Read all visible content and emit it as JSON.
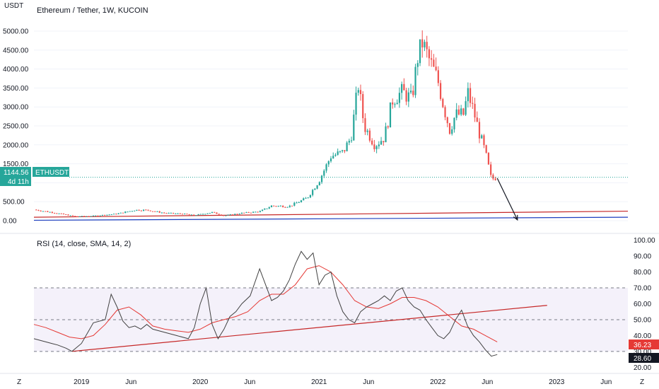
{
  "header": {
    "title": "Ethereum / Tether, 1W, KUCOIN",
    "currency": "USDT"
  },
  "price_badge": {
    "value": "1144.56",
    "countdown": "4d 11h",
    "symbol": "ETHUSDT",
    "color": "#26a69a"
  },
  "rsi": {
    "label": "RSI (14, close, SMA, 14, 2)",
    "value_badge": "36.23",
    "level_badge": "28.60"
  },
  "footer": {
    "z_left": "Z",
    "z_right": "Z"
  },
  "colors": {
    "up": "#26a69a",
    "down": "#ef5350",
    "rsi_line": "#424242",
    "rsi_ma": "#e53935",
    "band_fill": "#ede7f6",
    "trend_red": "#c62828",
    "trend_blue": "#1e3fbf",
    "rsi_value_badge": "#e53935",
    "rsi_level_badge": "#131722",
    "price_badge_dark": "#0d4d45"
  },
  "chart_data": [
    {
      "type": "candlestick",
      "title": "Ethereum / Tether, 1W, KUCOIN",
      "ylim": [
        -150,
        5150
      ],
      "xlim": [
        2018.6,
        2023.6
      ],
      "y_ticks": [
        "0.00",
        "500.00",
        "1000.00",
        "1500.00",
        "2000.00",
        "2500.00",
        "3000.00",
        "3500.00",
        "4000.00",
        "4500.00",
        "5000.00"
      ],
      "y_tick_values": [
        0,
        500,
        1000,
        1500,
        2000,
        2500,
        3000,
        3500,
        4000,
        4500,
        5000
      ],
      "last_price": 1144.56,
      "anchors": [
        [
          2018.6,
          290
        ],
        [
          2018.75,
          220
        ],
        [
          2018.95,
          110
        ],
        [
          2019.1,
          125
        ],
        [
          2019.3,
          180
        ],
        [
          2019.45,
          280
        ],
        [
          2019.55,
          280
        ],
        [
          2019.7,
          200
        ],
        [
          2019.85,
          180
        ],
        [
          2019.95,
          140
        ],
        [
          2020.1,
          220
        ],
        [
          2020.2,
          130
        ],
        [
          2020.35,
          200
        ],
        [
          2020.5,
          240
        ],
        [
          2020.6,
          390
        ],
        [
          2020.75,
          380
        ],
        [
          2020.9,
          600
        ],
        [
          2021.0,
          1050
        ],
        [
          2021.1,
          1700
        ],
        [
          2021.2,
          1800
        ],
        [
          2021.27,
          2200
        ],
        [
          2021.33,
          3600
        ],
        [
          2021.38,
          2500
        ],
        [
          2021.47,
          2000
        ],
        [
          2021.55,
          2200
        ],
        [
          2021.62,
          3200
        ],
        [
          2021.7,
          3400
        ],
        [
          2021.78,
          3200
        ],
        [
          2021.83,
          4300
        ],
        [
          2021.87,
          4700
        ],
        [
          2021.92,
          4300
        ],
        [
          2022.0,
          3700
        ],
        [
          2022.05,
          3000
        ],
        [
          2022.1,
          2400
        ],
        [
          2022.15,
          2800
        ],
        [
          2022.22,
          2800
        ],
        [
          2022.25,
          3400
        ],
        [
          2022.3,
          2900
        ],
        [
          2022.35,
          2300
        ],
        [
          2022.4,
          1800
        ],
        [
          2022.45,
          1100
        ],
        [
          2022.5,
          1144.56
        ]
      ],
      "trendlines": [
        {
          "from": [
            2018.6,
            90
          ],
          "to": [
            2023.6,
            250
          ],
          "color": "red"
        },
        {
          "from": [
            2018.6,
            10
          ],
          "to": [
            2023.6,
            90
          ],
          "color": "blue"
        },
        {
          "from": [
            2022.5,
            1120
          ],
          "to": [
            2022.67,
            20
          ],
          "color": "black",
          "arrow": true
        }
      ]
    },
    {
      "type": "line",
      "title": "RSI (14, close, SMA, 14, 2)",
      "ylim": [
        17,
        103
      ],
      "y_ticks": [
        "20.00",
        "30.00",
        "40.00",
        "50.00",
        "60.00",
        "70.00",
        "80.00",
        "90.00",
        "100.00"
      ],
      "y_tick_values": [
        20,
        30,
        40,
        50,
        60,
        70,
        80,
        90,
        100
      ],
      "bands": [
        30,
        50,
        70
      ],
      "x_ticks": [
        "2019",
        "Jun",
        "2020",
        "Jun",
        "2021",
        "Jun",
        "2022",
        "Jun",
        "2023",
        "Jun"
      ],
      "x_tick_values": [
        2019.0,
        2019.417,
        2020.0,
        2020.417,
        2021.0,
        2021.417,
        2022.0,
        2022.417,
        2023.0,
        2023.417
      ],
      "series": [
        {
          "role": "rsi",
          "x": [
            2018.6,
            2018.65,
            2018.7,
            2018.75,
            2018.8,
            2018.87,
            2018.92,
            2019.0,
            2019.1,
            2019.2,
            2019.25,
            2019.3,
            2019.35,
            2019.4,
            2019.45,
            2019.5,
            2019.55,
            2019.6,
            2019.7,
            2019.8,
            2019.9,
            2019.95,
            2020.0,
            2020.05,
            2020.1,
            2020.15,
            2020.2,
            2020.25,
            2020.3,
            2020.35,
            2020.42,
            2020.5,
            2020.55,
            2020.6,
            2020.65,
            2020.7,
            2020.75,
            2020.8,
            2020.85,
            2020.9,
            2020.95,
            2021.0,
            2021.05,
            2021.1,
            2021.15,
            2021.2,
            2021.25,
            2021.3,
            2021.35,
            2021.4,
            2021.45,
            2021.5,
            2021.55,
            2021.6,
            2021.65,
            2021.7,
            2021.75,
            2021.8,
            2021.85,
            2021.9,
            2021.95,
            2022.0,
            2022.05,
            2022.1,
            2022.15,
            2022.2,
            2022.25,
            2022.3,
            2022.35,
            2022.4,
            2022.45,
            2022.5
          ],
          "values": [
            38,
            37,
            36,
            35,
            34,
            32,
            30,
            35,
            48,
            50,
            66,
            58,
            49,
            45,
            46,
            44,
            47,
            44,
            42,
            40,
            38,
            45,
            60,
            70,
            47,
            38,
            44,
            52,
            55,
            60,
            65,
            82,
            72,
            62,
            64,
            68,
            75,
            85,
            93,
            88,
            92,
            72,
            78,
            80,
            65,
            55,
            50,
            48,
            55,
            58,
            60,
            62,
            65,
            62,
            68,
            70,
            62,
            58,
            56,
            50,
            45,
            40,
            38,
            42,
            50,
            56,
            46,
            40,
            36,
            31,
            27,
            28
          ]
        },
        {
          "role": "ma",
          "x": [
            2018.6,
            2018.7,
            2018.8,
            2018.9,
            2019.0,
            2019.1,
            2019.2,
            2019.3,
            2019.4,
            2019.5,
            2019.6,
            2019.7,
            2019.8,
            2019.9,
            2020.0,
            2020.1,
            2020.2,
            2020.3,
            2020.4,
            2020.5,
            2020.6,
            2020.7,
            2020.8,
            2020.9,
            2021.0,
            2021.1,
            2021.2,
            2021.3,
            2021.4,
            2021.5,
            2021.6,
            2021.7,
            2021.8,
            2021.9,
            2022.0,
            2022.1,
            2022.2,
            2022.3,
            2022.4,
            2022.5
          ],
          "values": [
            47,
            45,
            42,
            39,
            38,
            40,
            47,
            56,
            58,
            53,
            46,
            44,
            43,
            42,
            44,
            48,
            50,
            52,
            55,
            62,
            66,
            66,
            72,
            82,
            84,
            80,
            72,
            62,
            58,
            57,
            60,
            64,
            64,
            62,
            58,
            52,
            46,
            44,
            40,
            36
          ]
        }
      ],
      "trendlines": [
        {
          "from": [
            2018.92,
            30
          ],
          "to": [
            2022.92,
            59
          ],
          "color": "red"
        }
      ]
    }
  ]
}
